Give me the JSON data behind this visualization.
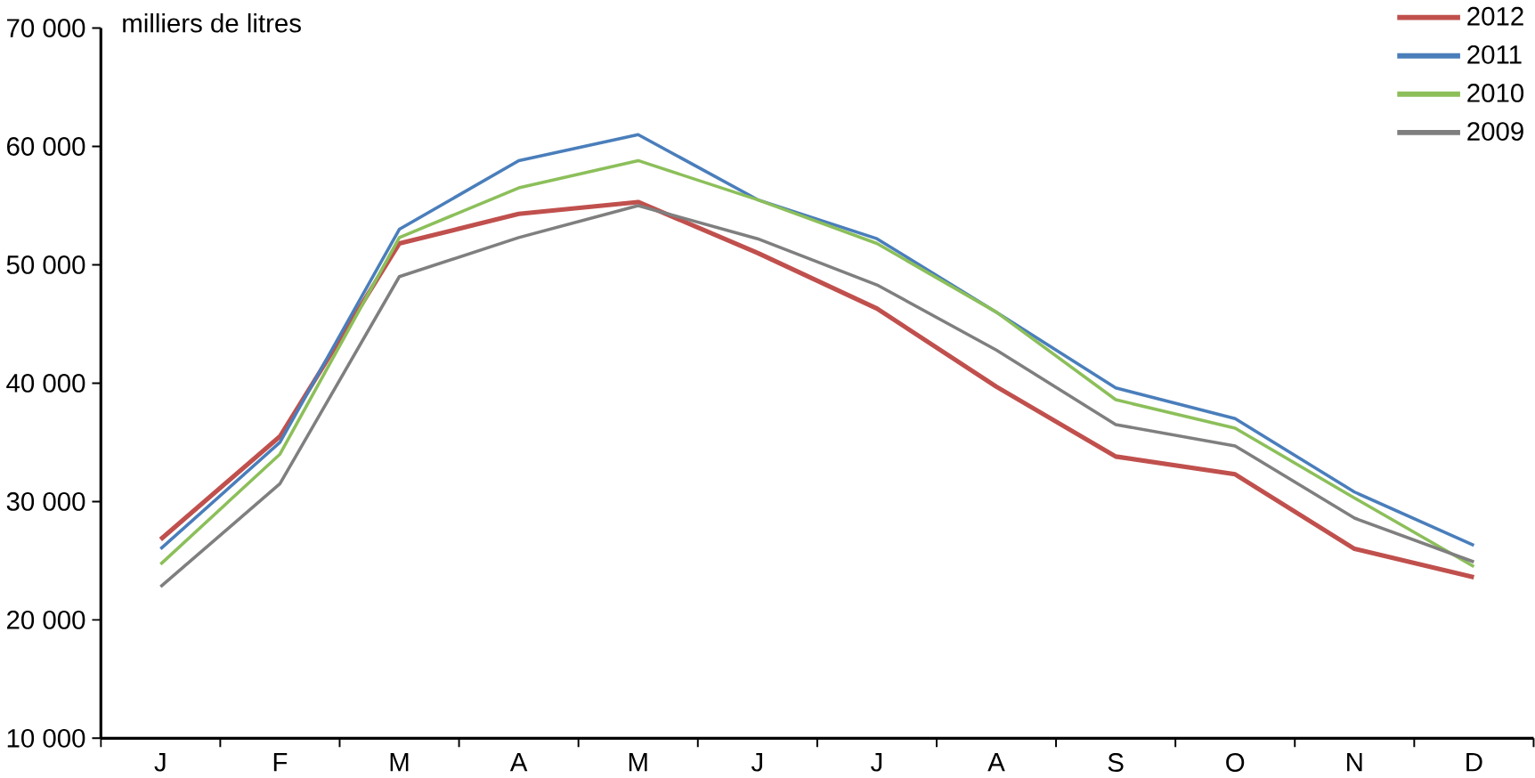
{
  "chart_data": {
    "type": "line",
    "ylabel": "milliers de litres",
    "categories": [
      "J",
      "F",
      "M",
      "A",
      "M",
      "J",
      "J",
      "A",
      "S",
      "O",
      "N",
      "D"
    ],
    "series": [
      {
        "name": "2012",
        "color": "#c0504d",
        "values": [
          26800,
          35500,
          51800,
          54300,
          55300,
          51000,
          46300,
          39700,
          33800,
          32300,
          26000,
          23600
        ]
      },
      {
        "name": "2011",
        "color": "#4a7ebb",
        "values": [
          26000,
          35000,
          53000,
          58800,
          61000,
          55500,
          52200,
          46000,
          39600,
          37000,
          30800,
          26300
        ]
      },
      {
        "name": "2010",
        "color": "#8cbf5a",
        "values": [
          24700,
          34000,
          52300,
          56500,
          58800,
          55500,
          51800,
          46000,
          38600,
          36200,
          30300,
          24500
        ]
      },
      {
        "name": "2009",
        "color": "#7f7f7f",
        "values": [
          22800,
          31500,
          49000,
          52300,
          55000,
          52200,
          48300,
          42800,
          36500,
          34700,
          28600,
          24900
        ]
      }
    ],
    "ylim": [
      10000,
      70000
    ],
    "yticks": [
      {
        "value": 10000,
        "label": "10 000"
      },
      {
        "value": 20000,
        "label": "20 000"
      },
      {
        "value": 30000,
        "label": "30 000"
      },
      {
        "value": 40000,
        "label": "40 000"
      },
      {
        "value": 50000,
        "label": "50 000"
      },
      {
        "value": 60000,
        "label": "60 000"
      },
      {
        "value": 70000,
        "label": "70 000"
      }
    ],
    "legend": "top right",
    "marker": "none",
    "line_style": "solid",
    "grid": false
  }
}
